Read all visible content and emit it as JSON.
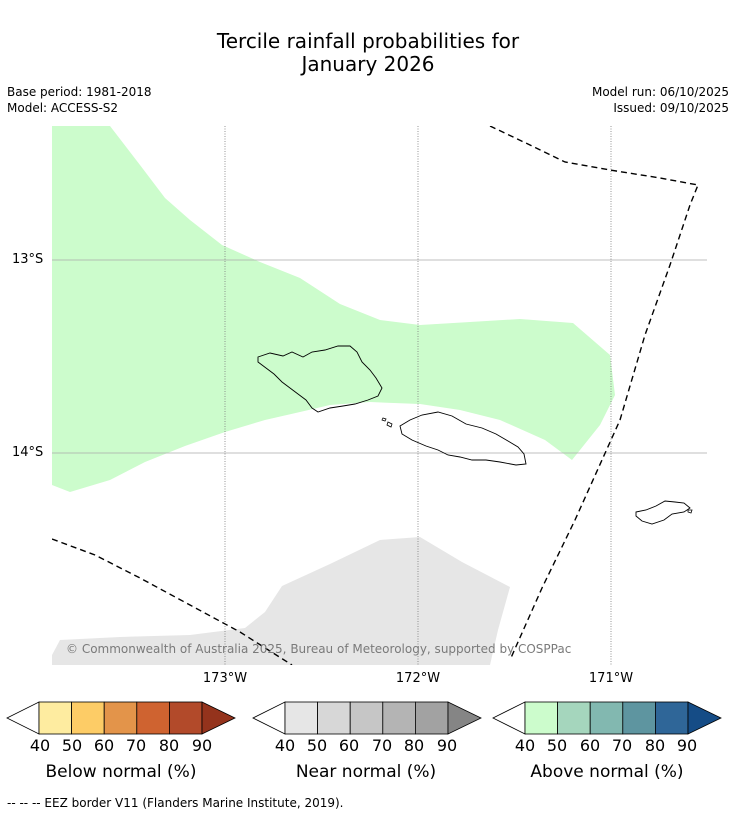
{
  "title": {
    "line1": "Tercile rainfall probabilities for",
    "line2": "January 2026"
  },
  "meta": {
    "base_period": "Base period: 1981-2018",
    "model": "Model: ACCESS-S2",
    "model_run": "Model run: 06/10/2025",
    "issued": "Issued: 09/10/2025"
  },
  "map": {
    "lat_labels": [
      "13°S",
      "14°S"
    ],
    "lon_labels": [
      "173°W",
      "172°W",
      "171°W"
    ],
    "copyright": "© Commonwealth of Australia 2025, Bureau of Meteorology, supported by COSPPac",
    "colors": {
      "above_50": "#ccfccc",
      "near_50": "#e6e6e6",
      "coast": "#000000",
      "eez": "#000000"
    }
  },
  "colorbars": [
    {
      "name": "below",
      "label": "Below normal (%)",
      "ticks": [
        "40",
        "50",
        "60",
        "70",
        "80",
        "90"
      ],
      "colors": [
        "#ffffff",
        "#feeca0",
        "#fdcc66",
        "#e3944a",
        "#cf6330",
        "#b24a2a",
        "#94331c"
      ]
    },
    {
      "name": "near",
      "label": "Near normal (%)",
      "ticks": [
        "40",
        "50",
        "60",
        "70",
        "80",
        "90"
      ],
      "colors": [
        "#ffffff",
        "#e6e6e6",
        "#d7d7d7",
        "#c6c6c6",
        "#b4b4b4",
        "#a2a2a2",
        "#858585"
      ]
    },
    {
      "name": "above",
      "label": "Above normal (%)",
      "ticks": [
        "40",
        "50",
        "60",
        "70",
        "80",
        "90"
      ],
      "colors": [
        "#ffffff",
        "#ccfccc",
        "#a5d6bd",
        "#82b8b0",
        "#5e95a0",
        "#2f6698",
        "#154c86"
      ]
    }
  ],
  "footer": "--  --  -- EEZ border V11 (Flanders Marine Institute, 2019)."
}
